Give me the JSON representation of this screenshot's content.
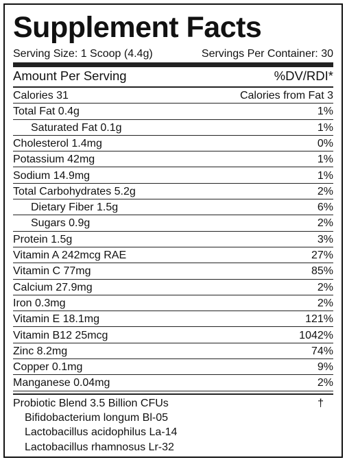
{
  "title": "Supplement Facts",
  "serving_size": "Serving Size: 1 Scoop (4.4g)",
  "servings_per_container": "Servings Per Container: 30",
  "header": {
    "amount": "Amount Per Serving",
    "dv": "%DV/RDI*"
  },
  "rows": [
    {
      "label": "Calories 31",
      "dv": "Calories from Fat 3",
      "indent": false
    },
    {
      "label": "Total Fat 0.4g",
      "dv": "1%",
      "indent": false
    },
    {
      "label": "Saturated Fat 0.1g",
      "dv": "1%",
      "indent": true
    },
    {
      "label": "Cholesterol 1.4mg",
      "dv": "0%",
      "indent": false
    },
    {
      "label": "Potassium 42mg",
      "dv": "1%",
      "indent": false
    },
    {
      "label": "Sodium 14.9mg",
      "dv": "1%",
      "indent": false
    },
    {
      "label": "Total Carbohydrates 5.2g",
      "dv": "2%",
      "indent": false
    },
    {
      "label": "Dietary Fiber 1.5g",
      "dv": "6%",
      "indent": true
    },
    {
      "label": "Sugars 0.9g",
      "dv": "2%",
      "indent": true
    },
    {
      "label": "Protein 1.5g",
      "dv": "3%",
      "indent": false
    },
    {
      "label": "Vitamin A 242mcg RAE",
      "dv": "27%",
      "indent": false
    },
    {
      "label": "Vitamin C 77mg",
      "dv": "85%",
      "indent": false
    },
    {
      "label": "Calcium 27.9mg",
      "dv": "2%",
      "indent": false
    },
    {
      "label": "Iron 0.3mg",
      "dv": "2%",
      "indent": false
    },
    {
      "label": "Vitamin E 18.1mg",
      "dv": "121%",
      "indent": false
    },
    {
      "label": "Vitamin B12 25mcg",
      "dv": "1042%",
      "indent": false
    },
    {
      "label": "Zinc 8.2mg",
      "dv": "74%",
      "indent": false
    },
    {
      "label": "Copper 0.1mg",
      "dv": "9%",
      "indent": false
    },
    {
      "label": "Manganese 0.04mg",
      "dv": "2%",
      "indent": false
    }
  ],
  "blend": {
    "label": "Probiotic Blend 3.5 Billion CFUs",
    "dv": "†",
    "ingredients": [
      "Bifidobacterium longum Bl-05",
      "Lactobacillus acidophilus La-14",
      "Lactobacillus rhamnosus Lr-32"
    ]
  }
}
